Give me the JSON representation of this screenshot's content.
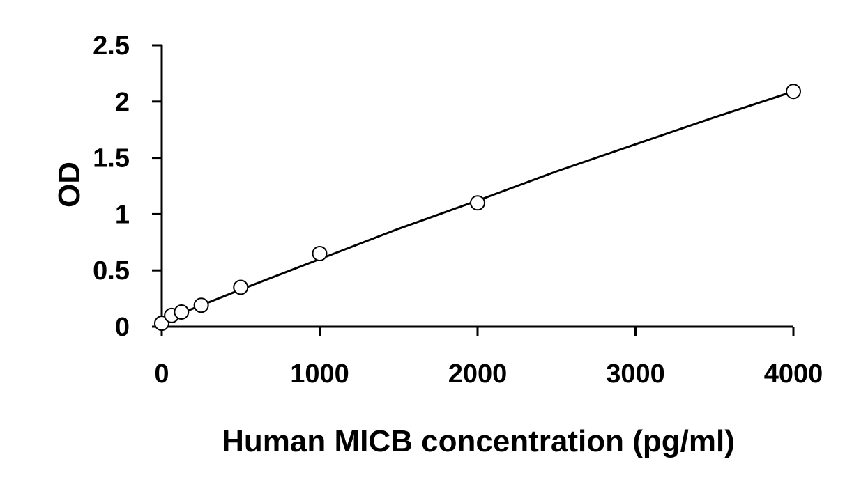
{
  "chart_data": {
    "type": "scatter",
    "title": "",
    "xlabel": "Human MICB concentration (pg/ml)",
    "ylabel": "OD",
    "xlim": [
      0,
      4000
    ],
    "ylim": [
      0,
      2.5
    ],
    "x_ticks": [
      0,
      1000,
      2000,
      3000,
      4000
    ],
    "x_tick_labels": [
      "0",
      "1000",
      "2000",
      "3000",
      "4000"
    ],
    "y_ticks": [
      0,
      0.5,
      1,
      1.5,
      2,
      2.5
    ],
    "y_tick_labels": [
      "0",
      "0.5",
      "1",
      "1.5",
      "2",
      "2.5"
    ],
    "grid": false,
    "legend": "none",
    "series": [
      {
        "marker": "open-circle",
        "x": [
          0,
          62.5,
          125,
          250,
          500,
          1000,
          2000,
          4000
        ],
        "y": [
          0.03,
          0.1,
          0.13,
          0.19,
          0.35,
          0.65,
          1.1,
          2.09
        ]
      }
    ],
    "fit_line": {
      "x": [
        0,
        500,
        1000,
        1500,
        2000,
        2500,
        3000,
        3500,
        4000
      ],
      "y": [
        0.05,
        0.33,
        0.6,
        0.87,
        1.12,
        1.38,
        1.62,
        1.86,
        2.09
      ]
    },
    "colors": {
      "axis": "#000000",
      "marker_stroke": "#000000",
      "marker_fill": "#ffffff",
      "line": "#000000"
    }
  }
}
